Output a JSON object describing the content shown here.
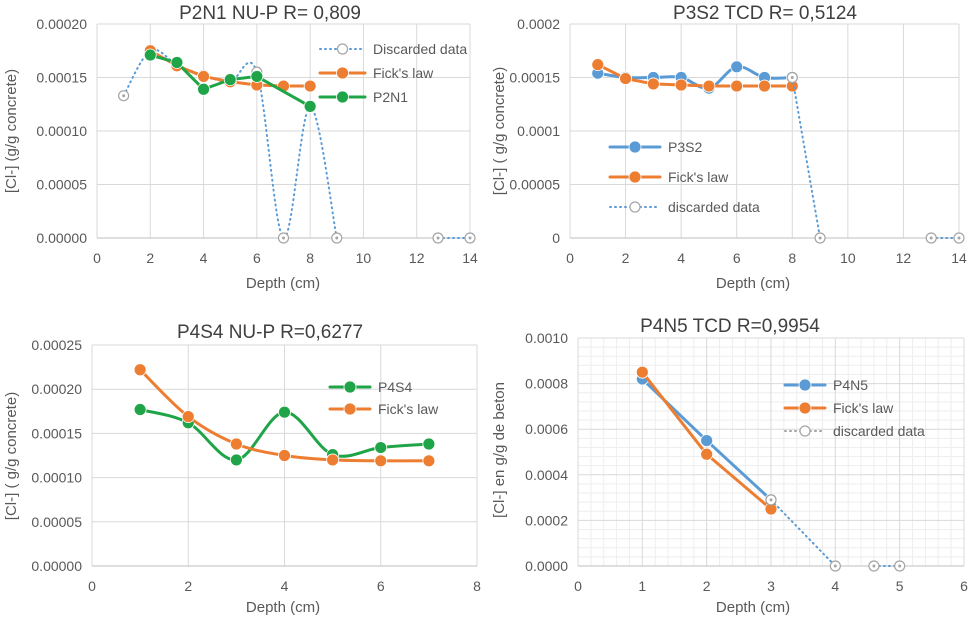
{
  "colors": {
    "blue": "#5b9bd5",
    "orange": "#ed7d31",
    "green": "#1fa548",
    "grid": "#d9d9d9",
    "axis": "#bfbfbf",
    "text": "#595959",
    "title": "#404040",
    "gray": "#a5a5a5"
  },
  "chart_data": [
    {
      "type": "line",
      "title": "P2N1 NU-P R= 0,809",
      "xlabel": "Depth (cm)",
      "ylabel": "[Cl-]  (g/g concrete)",
      "xlim": [
        0,
        14
      ],
      "ylim": [
        0,
        0.0002
      ],
      "x_ticks": [
        "0",
        "2",
        "4",
        "6",
        "8",
        "10",
        "12",
        "14"
      ],
      "y_ticks": [
        "0.00000",
        "0.00005",
        "0.00010",
        "0.00015",
        "0.00020"
      ],
      "legend_position": "top-right",
      "series": [
        {
          "name": "Discarded data",
          "color": "#5b9bd5",
          "style": "dotted",
          "marker": "open",
          "smooth": true,
          "x": [
            1,
            2,
            3,
            4,
            5,
            6,
            7,
            8,
            9
          ],
          "y": [
            0.000133,
            0.000175,
            0.000162,
            0.000152,
            0.000146,
            0.000155,
            0.0,
            0.000123,
            0.0
          ]
        },
        {
          "name": "Discarded data tail",
          "legend": false,
          "color": "#5b9bd5",
          "style": "dotted",
          "marker": "open",
          "smooth": false,
          "x": [
            12.8,
            14
          ],
          "y": [
            0.0,
            0.0
          ]
        },
        {
          "name": " Fick's law",
          "color": "#ed7d31",
          "style": "solid",
          "marker": "filled",
          "smooth": false,
          "x": [
            2,
            3,
            4,
            5,
            6,
            7,
            8
          ],
          "y": [
            0.000175,
            0.000161,
            0.000151,
            0.000146,
            0.000143,
            0.000142,
            0.000142
          ]
        },
        {
          "name": "P2N1",
          "color": "#1fa548",
          "style": "solid",
          "marker": "filled",
          "smooth": false,
          "x": [
            2,
            3,
            4,
            5,
            6,
            8
          ],
          "y": [
            0.000171,
            0.000164,
            0.000139,
            0.000148,
            0.000151,
            0.000123
          ]
        }
      ]
    },
    {
      "type": "line",
      "title": "P3S2 TCD     R= 0,5124",
      "xlabel": "Depth (cm)",
      "ylabel": "[Cl-] ( g/g concrete)",
      "xlim": [
        0,
        14
      ],
      "ylim": [
        0,
        0.0002
      ],
      "x_ticks": [
        "0",
        "2",
        "4",
        "6",
        "8",
        "10",
        "12",
        "14"
      ],
      "y_ticks": [
        "0",
        "0.00005",
        "0.0001",
        "0.00015",
        "0.0002"
      ],
      "legend_position": "center-left",
      "series": [
        {
          "name": "P3S2",
          "color": "#5b9bd5",
          "style": "solid",
          "marker": "filled",
          "smooth": true,
          "x": [
            1,
            2,
            3,
            4,
            5,
            6,
            7,
            8
          ],
          "y": [
            0.000154,
            0.00015,
            0.00015,
            0.00015,
            0.00014,
            0.00016,
            0.00015,
            0.00015
          ]
        },
        {
          "name": "Fick's law",
          "color": "#ed7d31",
          "style": "solid",
          "marker": "filled",
          "smooth": false,
          "x": [
            1,
            2,
            3,
            4,
            5,
            6,
            7,
            8
          ],
          "y": [
            0.000162,
            0.000149,
            0.000144,
            0.000143,
            0.000142,
            0.000142,
            0.000142,
            0.000142
          ]
        },
        {
          "name": "discarded data",
          "color": "#5b9bd5",
          "style": "dotted",
          "marker": "open",
          "smooth": true,
          "x": [
            8,
            9
          ],
          "y": [
            0.00015,
            0.0
          ]
        },
        {
          "name": "discarded data tail",
          "legend": false,
          "color": "#5b9bd5",
          "style": "dotted",
          "marker": "open",
          "smooth": false,
          "x": [
            13,
            14
          ],
          "y": [
            0.0,
            0.0
          ]
        }
      ]
    },
    {
      "type": "line",
      "title": "P4S4 NU-P     R=0,6277",
      "xlabel": "Depth (cm)",
      "ylabel": "[Cl-] ( g/g  concrete)",
      "xlim": [
        0,
        8
      ],
      "ylim": [
        0,
        0.00025
      ],
      "x_ticks": [
        "0",
        "2",
        "4",
        "6",
        "8"
      ],
      "y_ticks": [
        "0.00000",
        "0.00005",
        "0.00010",
        "0.00015",
        "0.00020",
        "0.00025"
      ],
      "legend_position": "top-right",
      "series": [
        {
          "name": "P4S4",
          "color": "#1fa548",
          "style": "solid",
          "marker": "filled",
          "smooth": true,
          "x": [
            1,
            2,
            3,
            4,
            5,
            6,
            7
          ],
          "y": [
            0.000177,
            0.000162,
            0.00012,
            0.000174,
            0.000126,
            0.000134,
            0.000138
          ]
        },
        {
          "name": "Fick's law",
          "color": "#ed7d31",
          "style": "solid",
          "marker": "filled",
          "smooth": true,
          "x": [
            1,
            2,
            3,
            4,
            5,
            6,
            7
          ],
          "y": [
            0.000222,
            0.000169,
            0.000138,
            0.000125,
            0.00012,
            0.000119,
            0.000119
          ]
        }
      ]
    },
    {
      "type": "line",
      "title": "P4N5 TCD     R=0,9954",
      "xlabel": "Depth (cm)",
      "ylabel": "[Cl-] en g/g de beton",
      "xlim": [
        0,
        6
      ],
      "ylim": [
        0,
        0.001
      ],
      "x_ticks": [
        "0",
        "1",
        "2",
        "3",
        "4",
        "5",
        "6"
      ],
      "y_ticks": [
        "0.0000",
        "0.0002",
        "0.0004",
        "0.0006",
        "0.0008",
        "0.0010"
      ],
      "legend_position": "right",
      "minor_grid": true,
      "series": [
        {
          "name": "P4N5",
          "color": "#5b9bd5",
          "style": "solid",
          "marker": "filled",
          "smooth": false,
          "x": [
            1,
            2,
            3
          ],
          "y": [
            0.00082,
            0.00055,
            0.00029
          ]
        },
        {
          "name": "Fick's law",
          "color": "#ed7d31",
          "style": "solid",
          "marker": "filled",
          "smooth": false,
          "x": [
            1,
            2,
            3
          ],
          "y": [
            0.00085,
            0.00049,
            0.00025
          ]
        },
        {
          "name": "discarded data",
          "color": "#a5a5a5",
          "legend_color": "#a5a5a5",
          "style": "dotted",
          "marker": "open",
          "smooth": true,
          "line_color": "#5b9bd5",
          "x": [
            3,
            4
          ],
          "y": [
            0.00029,
            0.0
          ]
        },
        {
          "name": "discarded data tail",
          "legend": false,
          "color": "#5b9bd5",
          "style": "dotted",
          "marker": "open",
          "smooth": false,
          "x": [
            4.6,
            5
          ],
          "y": [
            0.0,
            0.0
          ]
        }
      ]
    }
  ]
}
